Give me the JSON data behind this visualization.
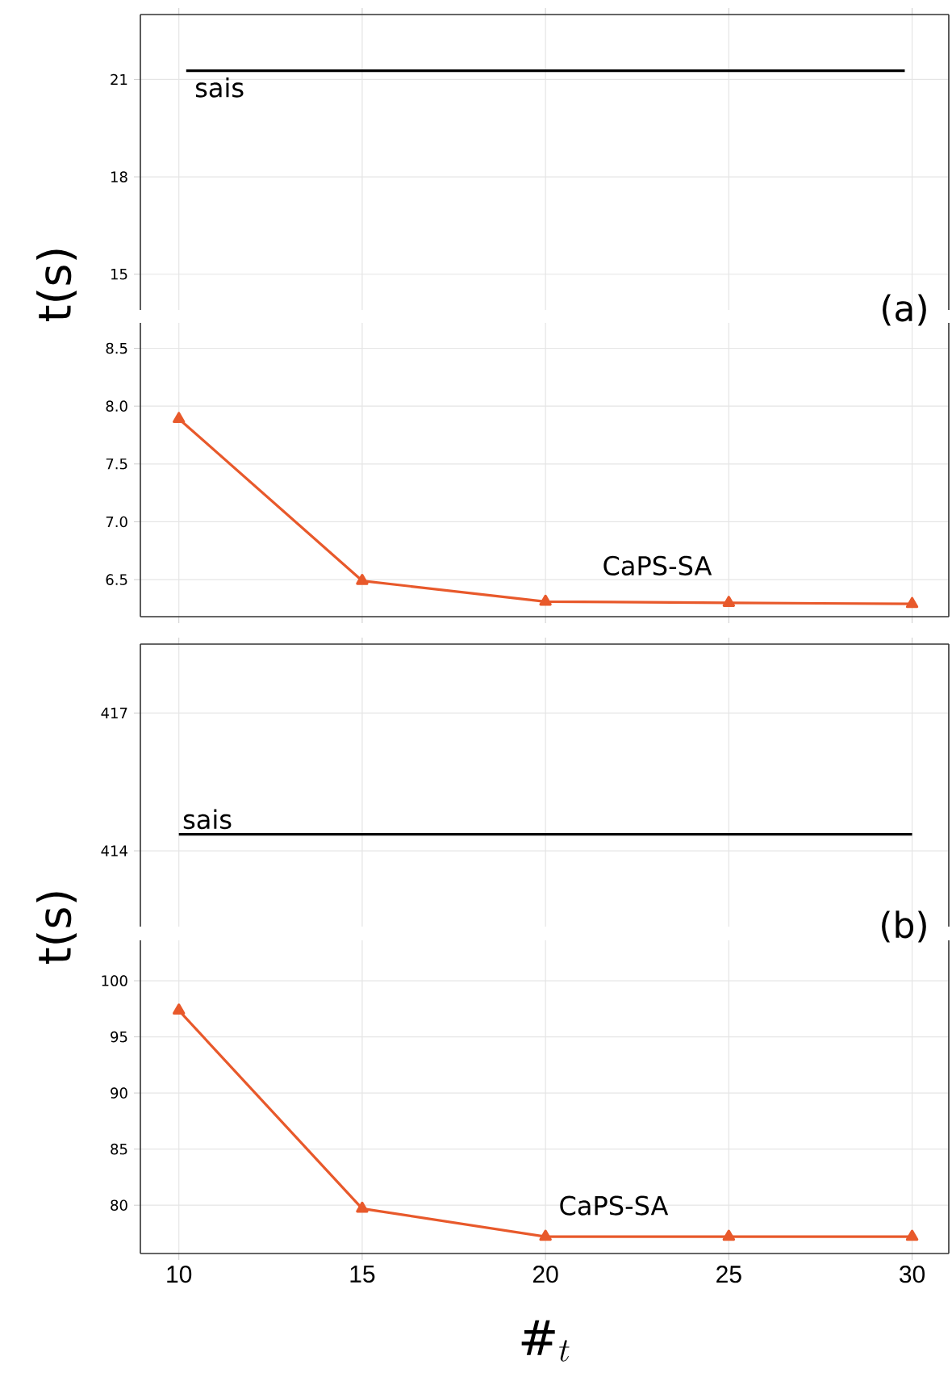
{
  "chart_data": [
    {
      "type": "line",
      "ylabel": "t(s)",
      "xlim": [
        8.95,
        31
      ],
      "xticks": [
        10,
        15,
        20,
        25,
        30
      ],
      "ylim": [
        13.9,
        23
      ],
      "yticks": [
        15,
        18,
        21
      ],
      "grid": true,
      "tick_labels": "y",
      "annotations": [
        "(a)"
      ],
      "series": [
        {
          "name": "sais",
          "color": "#000000",
          "marker": "none",
          "x": [
            10.2,
            29.8
          ],
          "values": [
            21.27,
            21.27
          ]
        }
      ]
    },
    {
      "type": "line",
      "xlim": [
        8.95,
        31
      ],
      "xticks": [
        10,
        15,
        20,
        25,
        30
      ],
      "ylim": [
        6.18,
        8.72
      ],
      "yticks": [
        6.5,
        {
          "value": 7,
          "label": "7.0"
        },
        7.5,
        {
          "value": 8,
          "label": "8.0"
        },
        8.5
      ],
      "grid": true,
      "tick_labels": "y",
      "series": [
        {
          "name": "CaPS-SA",
          "color": "#e8592b",
          "marker": "triangle",
          "x": [
            10,
            15,
            20,
            25,
            30
          ],
          "values": [
            7.89,
            6.49,
            6.31,
            6.3,
            6.29
          ]
        }
      ]
    },
    {
      "type": "line",
      "ylabel": "t(s)",
      "xlim": [
        8.95,
        31
      ],
      "xticks": [
        10,
        15,
        20,
        25,
        30
      ],
      "ylim": [
        412.35,
        418.5
      ],
      "yticks": [
        414,
        417
      ],
      "grid": true,
      "tick_labels": "y",
      "annotations": [
        "(b)"
      ],
      "series": [
        {
          "name": "sais",
          "color": "#000000",
          "marker": "none",
          "x": [
            10,
            30
          ],
          "values": [
            414.36,
            414.36
          ]
        }
      ]
    },
    {
      "type": "line",
      "xlabel": "\\#_t",
      "xlim": [
        8.95,
        31
      ],
      "xticks": [
        10,
        15,
        20,
        25,
        30
      ],
      "ylim": [
        75.7,
        103.6
      ],
      "yticks": [
        80,
        85,
        90,
        95,
        100
      ],
      "grid": true,
      "series": [
        {
          "name": "CaPS-SA",
          "color": "#e8592b",
          "marker": "triangle",
          "x": [
            10,
            15,
            20,
            25,
            30
          ],
          "values": [
            97.35,
            79.7,
            77.2,
            77.2,
            77.2
          ]
        }
      ]
    }
  ]
}
